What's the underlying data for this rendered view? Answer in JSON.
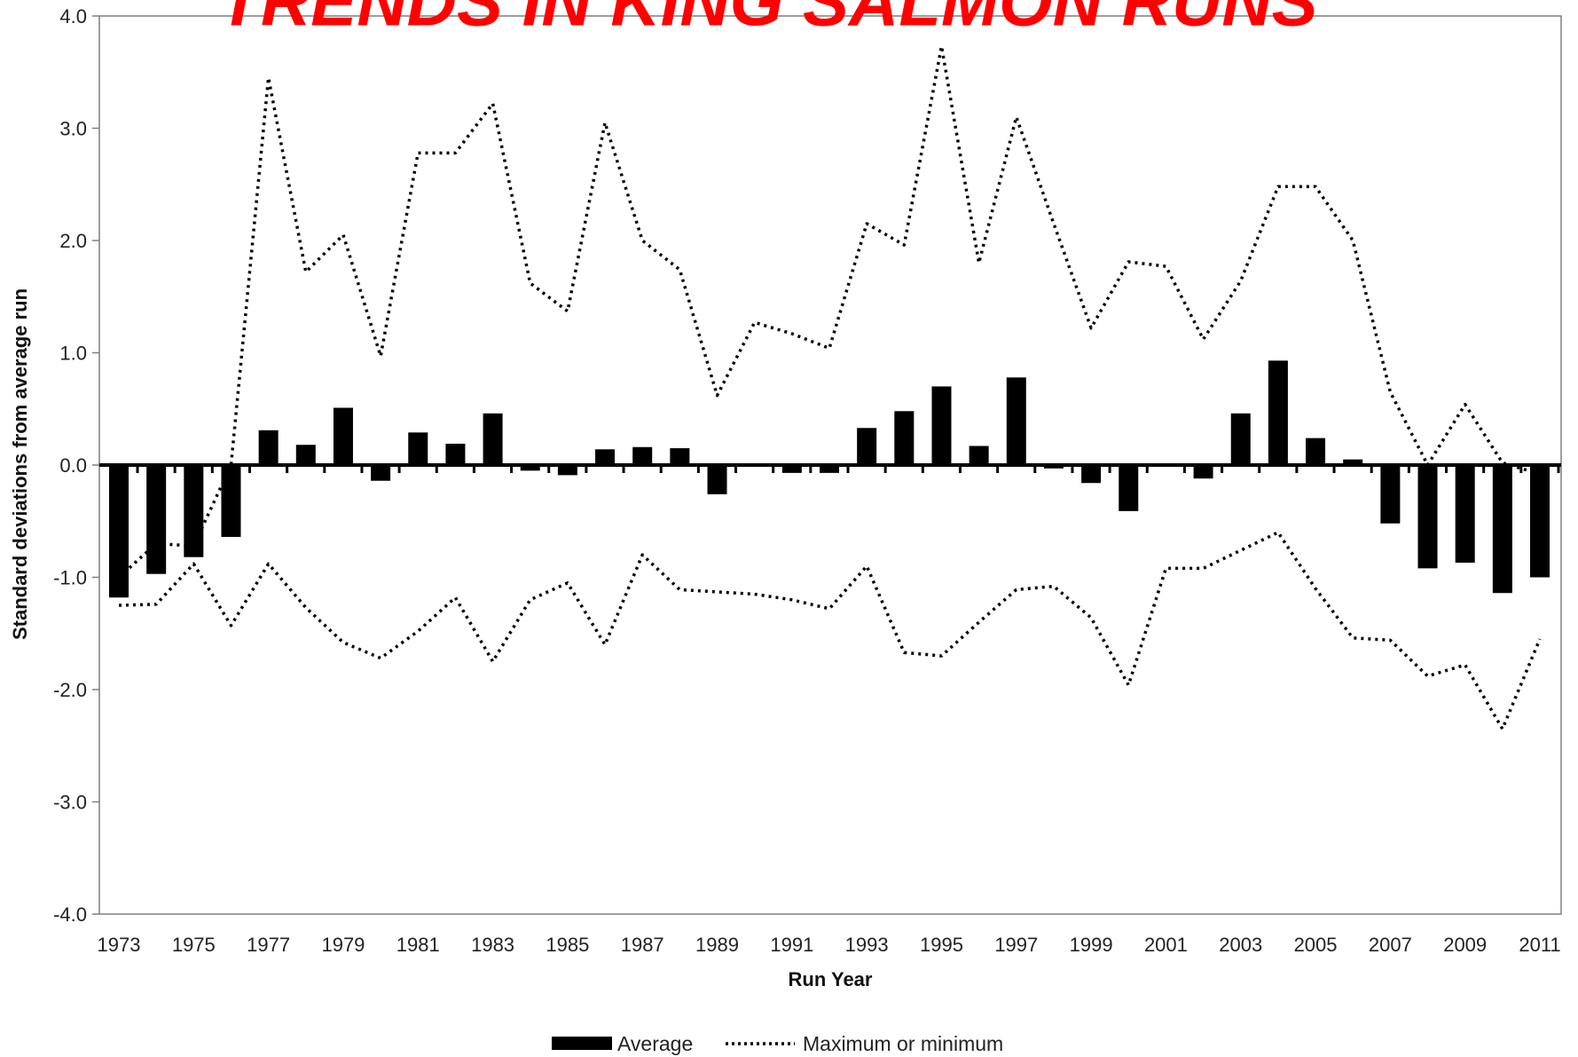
{
  "colors": {
    "title": "#ff0000",
    "bars": "#000000",
    "lines": "#000000",
    "frame": "#7f7f7f",
    "background": "#ffffff"
  },
  "chart_data": {
    "type": "bar",
    "title": "TRENDS IN KING SALMON RUNS",
    "xlabel": "Run Year",
    "ylabel": "Standard deviations from average run",
    "ylim": [
      -4.0,
      4.0
    ],
    "yticks": [
      "4.0",
      "3.0",
      "2.0",
      "1.0",
      "0.0",
      "-1.0",
      "-2.0",
      "-3.0",
      "-4.0"
    ],
    "xtick_labels": [
      "1973",
      "1975",
      "1977",
      "1979",
      "1981",
      "1983",
      "1985",
      "1987",
      "1989",
      "1991",
      "1993",
      "1995",
      "1997",
      "1999",
      "2001",
      "2003",
      "2005",
      "2007",
      "2009",
      "2011"
    ],
    "grid": false,
    "legend_position": "bottom",
    "x": [
      1973,
      1974,
      1975,
      1976,
      1977,
      1978,
      1979,
      1980,
      1981,
      1982,
      1983,
      1984,
      1985,
      1986,
      1987,
      1988,
      1989,
      1990,
      1991,
      1992,
      1993,
      1994,
      1995,
      1996,
      1997,
      1998,
      1999,
      2000,
      2001,
      2002,
      2003,
      2004,
      2005,
      2006,
      2007,
      2008,
      2009,
      2010,
      2011
    ],
    "series": [
      {
        "name": "Average",
        "kind": "bar",
        "values": [
          -1.18,
          -0.97,
          -0.82,
          -0.64,
          0.31,
          0.18,
          0.51,
          -0.14,
          0.29,
          0.19,
          0.46,
          -0.05,
          -0.09,
          0.14,
          0.16,
          0.15,
          -0.26,
          0.0,
          -0.07,
          -0.07,
          0.33,
          0.48,
          0.7,
          0.17,
          0.78,
          -0.03,
          -0.16,
          -0.41,
          0.0,
          -0.12,
          0.46,
          0.93,
          0.24,
          0.05,
          -0.52,
          -0.92,
          -0.87,
          -1.14,
          -1.0
        ]
      },
      {
        "name": "Maximum or minimum",
        "kind": "dotted-line",
        "upper": [
          -1.0,
          -0.7,
          -0.72,
          0.0,
          3.45,
          1.72,
          2.05,
          0.97,
          2.78,
          2.78,
          3.22,
          1.62,
          1.37,
          3.05,
          2.0,
          1.74,
          0.62,
          1.27,
          1.17,
          1.04,
          2.15,
          1.96,
          3.73,
          1.8,
          3.1,
          2.15,
          1.22,
          1.81,
          1.77,
          1.12,
          1.64,
          2.48,
          2.48,
          2.0,
          0.65,
          0.0,
          0.54,
          0.02,
          -0.08
        ],
        "lower": [
          -1.25,
          -1.24,
          -0.88,
          -1.43,
          -0.88,
          -1.27,
          -1.58,
          -1.72,
          -1.48,
          -1.18,
          -1.75,
          -1.2,
          -1.05,
          -1.6,
          -0.8,
          -1.11,
          -1.13,
          -1.15,
          -1.2,
          -1.28,
          -0.9,
          -1.67,
          -1.7,
          -1.4,
          -1.11,
          -1.08,
          -1.36,
          -1.96,
          -0.92,
          -0.92,
          -0.76,
          -0.6,
          -1.1,
          -1.54,
          -1.56,
          -1.88,
          -1.78,
          -2.35,
          -1.55
        ]
      }
    ]
  }
}
